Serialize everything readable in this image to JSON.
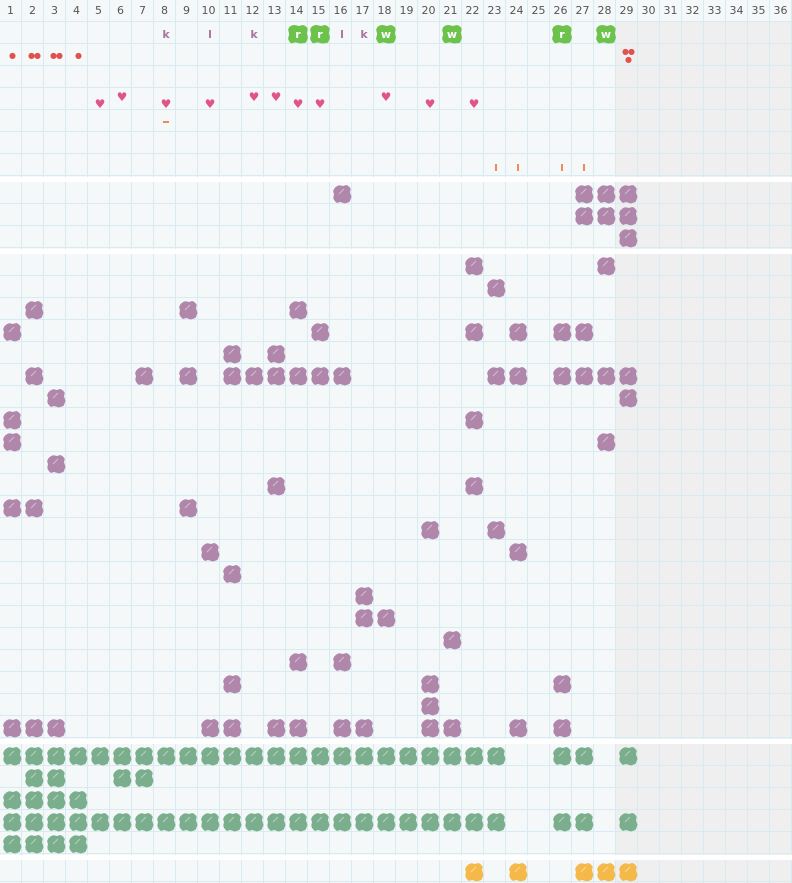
{
  "columns": [
    "1",
    "2",
    "3",
    "4",
    "5",
    "6",
    "7",
    "8",
    "9",
    "10",
    "11",
    "12",
    "13",
    "14",
    "15",
    "16",
    "17",
    "18",
    "19",
    "20",
    "21",
    "22",
    "23",
    "24",
    "25",
    "26",
    "27",
    "28",
    "29",
    "30",
    "31",
    "32",
    "33",
    "34",
    "35",
    "36"
  ],
  "colors": {
    "purple": "#b087ab",
    "green": "#7aae8c",
    "bright_green": "#6cc24a",
    "yellow": "#f5b94a",
    "drop": "#e0524f",
    "heart": "#e05585",
    "letter": "#a8759e",
    "orange": "#f08a5d",
    "inactive": "#efefef"
  },
  "inactive_from_column": 29,
  "sections": [
    {
      "rows": 7,
      "marks": [
        {
          "row": 1,
          "col": 8,
          "type": "letter",
          "text": "k"
        },
        {
          "row": 1,
          "col": 10,
          "type": "letter",
          "text": "l"
        },
        {
          "row": 1,
          "col": 12,
          "type": "letter",
          "text": "k"
        },
        {
          "row": 1,
          "col": 14,
          "type": "badge",
          "text": "r"
        },
        {
          "row": 1,
          "col": 15,
          "type": "badge",
          "text": "r"
        },
        {
          "row": 1,
          "col": 16,
          "type": "letter",
          "text": "l"
        },
        {
          "row": 1,
          "col": 17,
          "type": "letter",
          "text": "k"
        },
        {
          "row": 1,
          "col": 18,
          "type": "badge",
          "text": "w"
        },
        {
          "row": 1,
          "col": 21,
          "type": "badge",
          "text": "w"
        },
        {
          "row": 1,
          "col": 26,
          "type": "badge",
          "text": "r"
        },
        {
          "row": 1,
          "col": 28,
          "type": "badge",
          "text": "w"
        },
        {
          "row": 2,
          "col": 1,
          "type": "drop",
          "count": 1
        },
        {
          "row": 2,
          "col": 2,
          "type": "drop",
          "count": 2
        },
        {
          "row": 2,
          "col": 3,
          "type": "drop",
          "count": 2
        },
        {
          "row": 2,
          "col": 4,
          "type": "drop",
          "count": 1
        },
        {
          "row": 2,
          "col": 29,
          "type": "drop",
          "count": 3
        },
        {
          "row": 4,
          "col": 5,
          "type": "heart",
          "level": "low"
        },
        {
          "row": 4,
          "col": 6,
          "type": "heart",
          "level": "high"
        },
        {
          "row": 4,
          "col": 8,
          "type": "heart",
          "level": "low"
        },
        {
          "row": 4,
          "col": 10,
          "type": "heart",
          "level": "low"
        },
        {
          "row": 4,
          "col": 12,
          "type": "heart",
          "level": "high"
        },
        {
          "row": 4,
          "col": 13,
          "type": "heart",
          "level": "high"
        },
        {
          "row": 4,
          "col": 14,
          "type": "heart",
          "level": "low"
        },
        {
          "row": 4,
          "col": 15,
          "type": "heart",
          "level": "low"
        },
        {
          "row": 4,
          "col": 18,
          "type": "heart",
          "level": "high"
        },
        {
          "row": 4,
          "col": 20,
          "type": "heart",
          "level": "low"
        },
        {
          "row": 4,
          "col": 22,
          "type": "heart",
          "level": "low"
        },
        {
          "row": 5,
          "col": 8,
          "type": "dash"
        },
        {
          "row": 7,
          "col": 23,
          "type": "bar"
        },
        {
          "row": 7,
          "col": 24,
          "type": "bar"
        },
        {
          "row": 7,
          "col": 26,
          "type": "bar"
        },
        {
          "row": 7,
          "col": 27,
          "type": "bar"
        }
      ]
    },
    {
      "rows": 3,
      "blob_color": "purple",
      "blobs": [
        [
          16,
          27,
          28,
          29
        ],
        [
          27,
          28,
          29
        ],
        [
          29
        ]
      ]
    },
    {
      "rows": 22,
      "blob_color": "purple",
      "blobs": [
        [
          22,
          28
        ],
        [
          23
        ],
        [
          2,
          9,
          14
        ],
        [
          1,
          15,
          22,
          24,
          26,
          27
        ],
        [
          11,
          13
        ],
        [
          2,
          7,
          9,
          11,
          12,
          13,
          14,
          15,
          16,
          23,
          24,
          26,
          27,
          28,
          29
        ],
        [
          3,
          29
        ],
        [
          1,
          22
        ],
        [
          1,
          28
        ],
        [
          3
        ],
        [
          13,
          22
        ],
        [
          1,
          2,
          9
        ],
        [
          20,
          23
        ],
        [
          10,
          24
        ],
        [
          11
        ],
        [
          17
        ],
        [
          17,
          18
        ],
        [
          21
        ],
        [
          14,
          16
        ],
        [
          11,
          20,
          26
        ],
        [
          20
        ],
        [
          1,
          2,
          3,
          10,
          11,
          13,
          14,
          16,
          17,
          20,
          21,
          24,
          26
        ]
      ]
    },
    {
      "rows": 5,
      "blob_color": "green",
      "blobs": [
        [
          1,
          2,
          3,
          4,
          5,
          6,
          7,
          8,
          9,
          10,
          11,
          12,
          13,
          14,
          15,
          16,
          17,
          18,
          19,
          20,
          21,
          22,
          23,
          26,
          27,
          29
        ],
        [
          2,
          3,
          6,
          7
        ],
        [
          1,
          2,
          3,
          4
        ],
        [
          1,
          2,
          3,
          4,
          5,
          6,
          7,
          8,
          9,
          10,
          11,
          12,
          13,
          14,
          15,
          16,
          17,
          18,
          19,
          20,
          21,
          22,
          23,
          26,
          27,
          29
        ],
        [
          1,
          2,
          3,
          4
        ]
      ]
    },
    {
      "rows": 1,
      "blob_color": "yellow",
      "blobs": [
        [
          22,
          24,
          27,
          28,
          29
        ]
      ]
    }
  ]
}
